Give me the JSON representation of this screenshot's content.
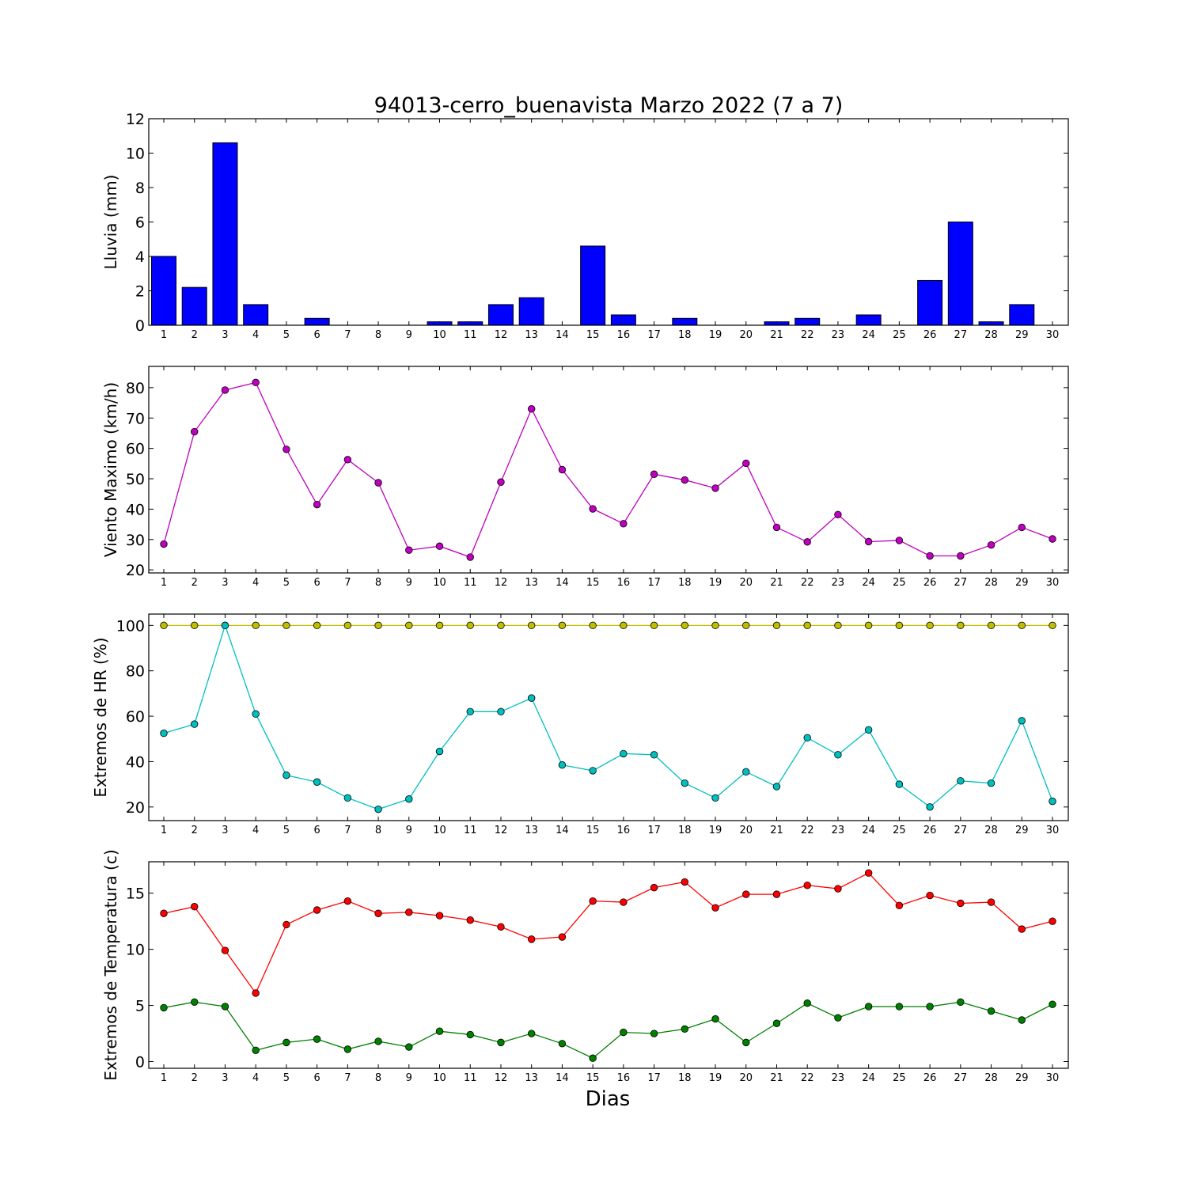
{
  "title": "94013-cerro_buenavista Marzo 2022  (7 a 7)",
  "xlabel": "Dias",
  "chart_data": [
    {
      "type": "bar",
      "ylabel": "Lluvia (mm)",
      "ylim": [
        0,
        12
      ],
      "yticks": [
        "0",
        "2",
        "4",
        "6",
        "8",
        "10",
        "12"
      ],
      "categories": [
        "1",
        "2",
        "3",
        "4",
        "5",
        "6",
        "7",
        "8",
        "9",
        "10",
        "11",
        "12",
        "13",
        "14",
        "15",
        "16",
        "17",
        "18",
        "19",
        "20",
        "21",
        "22",
        "23",
        "24",
        "25",
        "26",
        "27",
        "28",
        "29",
        "30"
      ],
      "series": [
        {
          "color": "#0000ff",
          "values": [
            4.0,
            2.2,
            10.6,
            1.2,
            0,
            0.4,
            0,
            0,
            0,
            0.2,
            0.2,
            1.2,
            1.6,
            0,
            4.6,
            0.6,
            0,
            0.4,
            0,
            0,
            0.2,
            0.4,
            0,
            0.6,
            0,
            2.6,
            6.0,
            0.2,
            1.2,
            0
          ]
        }
      ]
    },
    {
      "type": "line",
      "ylabel": "Viento Maximo (km/h)",
      "ylim": [
        19,
        87
      ],
      "yticks": [
        "20",
        "30",
        "40",
        "50",
        "60",
        "70",
        "80"
      ],
      "categories": [
        "1",
        "2",
        "3",
        "4",
        "5",
        "6",
        "7",
        "8",
        "9",
        "10",
        "11",
        "12",
        "13",
        "14",
        "15",
        "16",
        "17",
        "18",
        "19",
        "20",
        "21",
        "22",
        "23",
        "24",
        "25",
        "26",
        "27",
        "28",
        "29",
        "30"
      ],
      "series": [
        {
          "color": "#bf00bf",
          "values": [
            28.5,
            65.5,
            79.2,
            81.7,
            59.7,
            41.5,
            56.3,
            48.7,
            26.5,
            27.8,
            24.2,
            48.9,
            73.0,
            53.0,
            40.1,
            35.2,
            51.5,
            49.6,
            46.9,
            55.1,
            34.0,
            29.2,
            38.2,
            29.3,
            29.7,
            24.6,
            24.6,
            28.2,
            34.0,
            30.2
          ]
        }
      ]
    },
    {
      "type": "line",
      "ylabel": "Extremos de HR (%)",
      "ylim": [
        14,
        105
      ],
      "yticks": [
        "20",
        "40",
        "60",
        "80",
        "100"
      ],
      "categories": [
        "1",
        "2",
        "3",
        "4",
        "5",
        "6",
        "7",
        "8",
        "9",
        "10",
        "11",
        "12",
        "13",
        "14",
        "15",
        "16",
        "17",
        "18",
        "19",
        "20",
        "21",
        "22",
        "23",
        "24",
        "25",
        "26",
        "27",
        "28",
        "29",
        "30"
      ],
      "series": [
        {
          "color": "#bfbf00",
          "values": [
            100,
            100,
            100,
            100,
            100,
            100,
            100,
            100,
            100,
            100,
            100,
            100,
            100,
            100,
            100,
            100,
            100,
            100,
            100,
            100,
            100,
            100,
            100,
            100,
            100,
            100,
            100,
            100,
            100,
            100
          ]
        },
        {
          "color": "#00bfbf",
          "values": [
            52.5,
            56.5,
            100,
            61.0,
            34.0,
            31.0,
            24.0,
            19.0,
            23.5,
            44.5,
            62.0,
            62.0,
            68.0,
            38.5,
            36.0,
            43.5,
            43.0,
            30.5,
            24.0,
            35.5,
            29.0,
            50.5,
            43.0,
            54.0,
            30.0,
            20.0,
            31.5,
            30.5,
            58.0,
            22.5
          ]
        }
      ]
    },
    {
      "type": "line",
      "ylabel": "Extremos de Temperatura (c)",
      "ylim": [
        -0.6,
        17.8
      ],
      "yticks": [
        "0",
        "5",
        "10",
        "15"
      ],
      "categories": [
        "1",
        "2",
        "3",
        "4",
        "5",
        "6",
        "7",
        "8",
        "9",
        "10",
        "11",
        "12",
        "13",
        "14",
        "15",
        "16",
        "17",
        "18",
        "19",
        "20",
        "21",
        "22",
        "23",
        "24",
        "25",
        "26",
        "27",
        "28",
        "29",
        "30"
      ],
      "series": [
        {
          "color": "#ff0000",
          "values": [
            13.2,
            13.8,
            9.9,
            6.1,
            12.2,
            13.5,
            14.3,
            13.2,
            13.3,
            13.0,
            12.6,
            12.0,
            10.9,
            11.1,
            14.3,
            14.2,
            15.5,
            16.0,
            13.7,
            14.9,
            14.9,
            15.7,
            15.4,
            16.8,
            13.9,
            14.8,
            14.1,
            14.2,
            11.8,
            12.5
          ]
        },
        {
          "color": "#008000",
          "values": [
            4.8,
            5.3,
            4.9,
            1.0,
            1.7,
            2.0,
            1.1,
            1.8,
            1.3,
            2.7,
            2.4,
            1.7,
            2.5,
            1.6,
            0.3,
            2.6,
            2.5,
            2.9,
            3.8,
            1.7,
            3.4,
            5.2,
            3.9,
            4.9,
            4.9,
            4.9,
            5.3,
            4.5,
            3.7,
            5.1
          ]
        }
      ]
    }
  ]
}
